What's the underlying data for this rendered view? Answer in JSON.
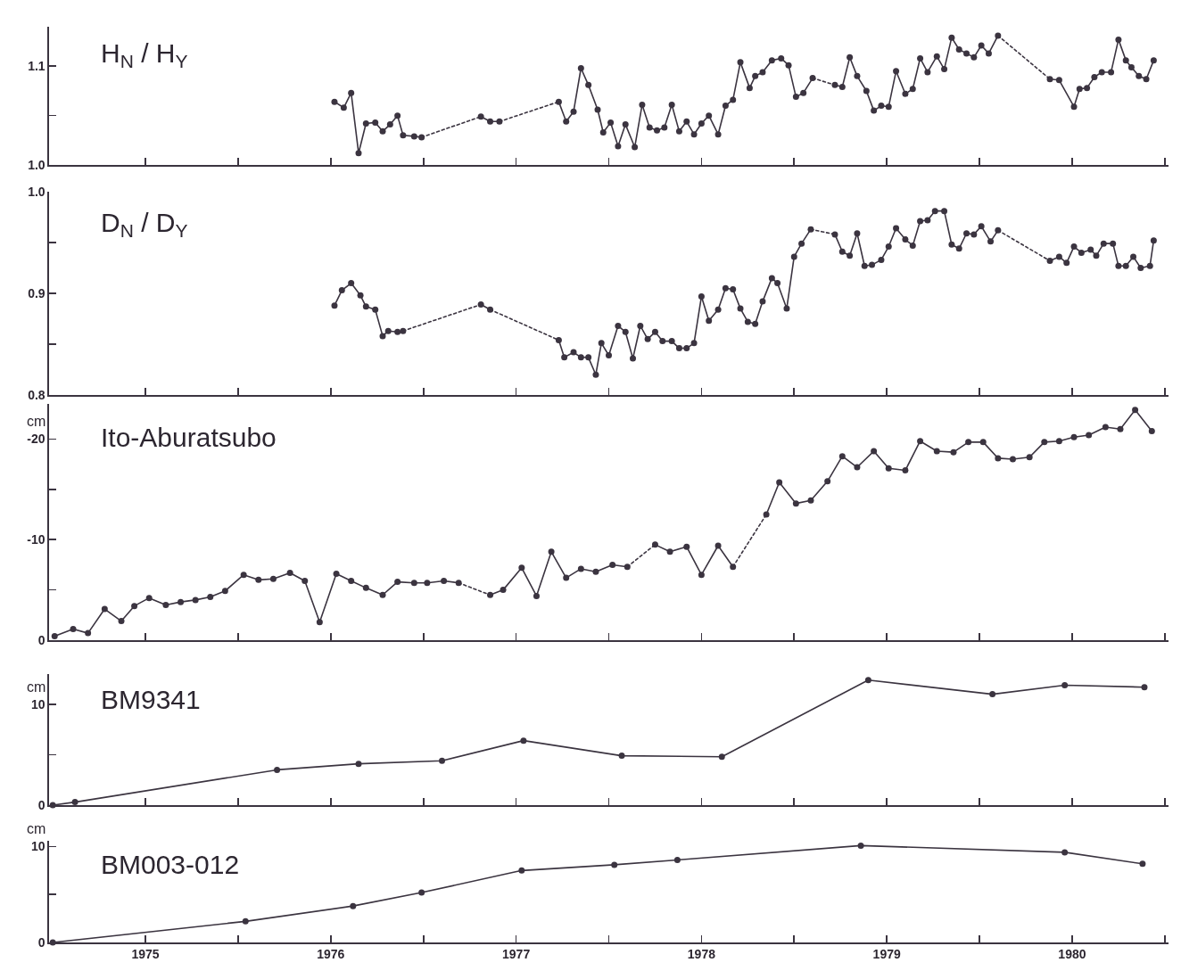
{
  "chart_data": [
    {
      "type": "line",
      "title": "H$_{N}$ / H$_{Y}$",
      "xlim": [
        1974.48,
        1980.52
      ],
      "xticks": [
        1975,
        {
          "value": 1975.5,
          "label": null
        },
        1976,
        {
          "value": 1976.5,
          "label": null
        },
        1977,
        {
          "value": 1977.5,
          "label": null
        },
        1978,
        {
          "value": 1978.5,
          "label": null
        },
        1979,
        {
          "value": 1979.5,
          "label": null
        },
        1980,
        {
          "value": 1980.5,
          "label": null
        }
      ],
      "ylim": [
        1.0,
        1.14
      ],
      "yticks": [
        {
          "value": 1.0,
          "label": "1.0"
        },
        {
          "value": 1.05,
          "label": null
        },
        1.1
      ],
      "tick_labels": "y",
      "series": [
        {
          "color": "#3b3440",
          "marker": "circle",
          "line_style": "solid",
          "x": [
            1976.02,
            1976.07,
            1976.11,
            1976.15,
            1976.19,
            1976.24,
            1976.28,
            1976.32,
            1976.36,
            1976.39,
            1976.45,
            1976.49
          ],
          "values": [
            1.064,
            1.058,
            1.073,
            1.012,
            1.042,
            1.043,
            1.034,
            1.041,
            1.05,
            1.03,
            1.029,
            1.028
          ]
        },
        {
          "color": "#3b3440",
          "marker": "circle",
          "line_style": "solid",
          "x": [
            1976.81,
            1976.86,
            1976.91
          ],
          "values": [
            1.049,
            1.044,
            1.044
          ]
        },
        {
          "color": "#3b3440",
          "marker": "circle",
          "line_style": "solid",
          "x": [
            1977.23,
            1977.27,
            1977.31,
            1977.35,
            1977.39,
            1977.44,
            1977.47,
            1977.51,
            1977.55,
            1977.59,
            1977.64,
            1977.68,
            1977.72,
            1977.76,
            1977.8,
            1977.84,
            1977.88,
            1977.92,
            1977.96,
            1978.0,
            1978.04,
            1978.09,
            1978.13,
            1978.17,
            1978.21,
            1978.26,
            1978.29,
            1978.33,
            1978.38,
            1978.43,
            1978.47,
            1978.51,
            1978.55,
            1978.6
          ],
          "values": [
            1.064,
            1.044,
            1.054,
            1.098,
            1.081,
            1.056,
            1.033,
            1.043,
            1.019,
            1.041,
            1.018,
            1.061,
            1.038,
            1.035,
            1.038,
            1.061,
            1.034,
            1.044,
            1.031,
            1.042,
            1.05,
            1.031,
            1.06,
            1.066,
            1.104,
            1.078,
            1.09,
            1.094,
            1.106,
            1.108,
            1.101,
            1.069,
            1.073,
            1.088
          ]
        },
        {
          "color": "#3b3440",
          "marker": "circle",
          "line_style": "solid",
          "x": [
            1978.72,
            1978.76,
            1978.8,
            1978.84,
            1978.89,
            1978.93,
            1978.97,
            1979.01,
            1979.05,
            1979.1,
            1979.14,
            1979.18,
            1979.22,
            1979.27,
            1979.31,
            1979.35,
            1979.39,
            1979.43,
            1979.47,
            1979.51,
            1979.55,
            1979.6
          ],
          "values": [
            1.081,
            1.079,
            1.109,
            1.09,
            1.075,
            1.055,
            1.06,
            1.059,
            1.095,
            1.072,
            1.077,
            1.108,
            1.094,
            1.11,
            1.097,
            1.129,
            1.117,
            1.113,
            1.109,
            1.121,
            1.113,
            1.131
          ]
        },
        {
          "color": "#3b3440",
          "marker": "circle",
          "line_style": "solid",
          "x": [
            1979.88,
            1979.93,
            1980.01,
            1980.04,
            1980.08,
            1980.12,
            1980.16,
            1980.21,
            1980.25,
            1980.29,
            1980.32,
            1980.36,
            1980.4,
            1980.44
          ],
          "values": [
            1.087,
            1.086,
            1.059,
            1.077,
            1.078,
            1.089,
            1.094,
            1.094,
            1.127,
            1.106,
            1.099,
            1.09,
            1.087,
            1.106
          ]
        },
        {
          "color": "#3b3440",
          "marker": "none",
          "line_style": "dotted",
          "x": [
            1976.49,
            1976.81
          ],
          "values": [
            1.028,
            1.049
          ]
        },
        {
          "color": "#3b3440",
          "marker": "none",
          "line_style": "dotted",
          "x": [
            1976.91,
            1977.23
          ],
          "values": [
            1.044,
            1.064
          ]
        },
        {
          "color": "#3b3440",
          "marker": "none",
          "line_style": "dotted",
          "x": [
            1978.6,
            1978.72
          ],
          "values": [
            1.088,
            1.081
          ]
        },
        {
          "color": "#3b3440",
          "marker": "none",
          "line_style": "dotted",
          "x": [
            1979.6,
            1979.88
          ],
          "values": [
            1.131,
            1.087
          ]
        }
      ]
    },
    {
      "type": "line",
      "title": "D$_{N}$ / D$_{Y}$",
      "xlim": [
        1974.48,
        1980.52
      ],
      "xticks": [
        1975,
        {
          "value": 1975.5,
          "label": null
        },
        1976,
        {
          "value": 1976.5,
          "label": null
        },
        1977,
        {
          "value": 1977.5,
          "label": null
        },
        1978,
        {
          "value": 1978.5,
          "label": null
        },
        1979,
        {
          "value": 1979.5,
          "label": null
        },
        1980,
        {
          "value": 1980.5,
          "label": null
        }
      ],
      "ylim": [
        0.8,
        1.0
      ],
      "yticks": [
        0.8,
        {
          "value": 0.85,
          "label": null
        },
        0.9,
        {
          "value": 0.95,
          "label": null
        },
        {
          "value": 1.0,
          "label": "1.0"
        }
      ],
      "tick_labels": "y",
      "series": [
        {
          "color": "#3b3440",
          "marker": "circle",
          "line_style": "solid",
          "x": [
            1976.02,
            1976.06,
            1976.11,
            1976.16,
            1976.19,
            1976.24,
            1976.28,
            1976.31,
            1976.36,
            1976.39
          ],
          "values": [
            0.888,
            0.903,
            0.91,
            0.898,
            0.887,
            0.884,
            0.858,
            0.863,
            0.862,
            0.863
          ]
        },
        {
          "color": "#3b3440",
          "marker": "circle",
          "line_style": "solid",
          "x": [
            1976.81,
            1976.86
          ],
          "values": [
            0.889,
            0.884
          ]
        },
        {
          "color": "#3b3440",
          "marker": "circle",
          "line_style": "solid",
          "x": [
            1977.23,
            1977.26,
            1977.31,
            1977.35,
            1977.39,
            1977.43,
            1977.46,
            1977.5,
            1977.55,
            1977.59,
            1977.63,
            1977.67,
            1977.71,
            1977.75,
            1977.79,
            1977.84,
            1977.88,
            1977.92,
            1977.96,
            1978.0,
            1978.04,
            1978.09,
            1978.13,
            1978.17,
            1978.21,
            1978.25,
            1978.29,
            1978.33,
            1978.38,
            1978.41,
            1978.46,
            1978.5,
            1978.54,
            1978.59
          ],
          "values": [
            0.854,
            0.837,
            0.842,
            0.837,
            0.837,
            0.82,
            0.851,
            0.839,
            0.868,
            0.862,
            0.836,
            0.868,
            0.855,
            0.862,
            0.853,
            0.853,
            0.846,
            0.846,
            0.851,
            0.897,
            0.873,
            0.884,
            0.905,
            0.904,
            0.885,
            0.872,
            0.87,
            0.892,
            0.915,
            0.91,
            0.885,
            0.936,
            0.949,
            0.963
          ]
        },
        {
          "color": "#3b3440",
          "marker": "circle",
          "line_style": "solid",
          "x": [
            1978.72,
            1978.76,
            1978.8,
            1978.84,
            1978.88,
            1978.92,
            1978.97,
            1979.01,
            1979.05,
            1979.1,
            1979.14,
            1979.18,
            1979.22,
            1979.26,
            1979.31,
            1979.35,
            1979.39,
            1979.43,
            1979.47,
            1979.51,
            1979.56,
            1979.6
          ],
          "values": [
            0.958,
            0.941,
            0.937,
            0.959,
            0.927,
            0.928,
            0.933,
            0.946,
            0.964,
            0.953,
            0.947,
            0.971,
            0.972,
            0.981,
            0.981,
            0.948,
            0.944,
            0.959,
            0.958,
            0.966,
            0.951,
            0.962
          ]
        },
        {
          "color": "#3b3440",
          "marker": "circle",
          "line_style": "solid",
          "x": [
            1979.88,
            1979.93,
            1979.97,
            1980.01,
            1980.05,
            1980.1,
            1980.13,
            1980.17,
            1980.22,
            1980.25,
            1980.29,
            1980.33,
            1980.37,
            1980.42,
            1980.44
          ],
          "values": [
            0.932,
            0.936,
            0.93,
            0.946,
            0.94,
            0.943,
            0.937,
            0.949,
            0.949,
            0.927,
            0.927,
            0.936,
            0.925,
            0.927,
            0.952
          ]
        },
        {
          "color": "#3b3440",
          "marker": "none",
          "line_style": "dotted",
          "x": [
            1976.39,
            1976.81
          ],
          "values": [
            0.863,
            0.889
          ]
        },
        {
          "color": "#3b3440",
          "marker": "none",
          "line_style": "dotted",
          "x": [
            1976.86,
            1977.23
          ],
          "values": [
            0.884,
            0.854
          ]
        },
        {
          "color": "#3b3440",
          "marker": "none",
          "line_style": "dotted",
          "x": [
            1978.59,
            1978.72
          ],
          "values": [
            0.963,
            0.958
          ]
        },
        {
          "color": "#3b3440",
          "marker": "none",
          "line_style": "dotted",
          "x": [
            1979.6,
            1979.88
          ],
          "values": [
            0.962,
            0.932
          ]
        }
      ]
    },
    {
      "type": "line",
      "title": "Ito-Aburatsubo",
      "ylabel": "cm",
      "xlim": [
        1974.48,
        1980.52
      ],
      "xticks": [
        1975,
        {
          "value": 1975.5,
          "label": null
        },
        1976,
        {
          "value": 1976.5,
          "label": null
        },
        1977,
        {
          "value": 1977.5,
          "label": null
        },
        1978,
        {
          "value": 1978.5,
          "label": null
        },
        1979,
        {
          "value": 1979.5,
          "label": null
        },
        1980,
        {
          "value": 1980.5,
          "label": null
        }
      ],
      "ylim": [
        0,
        -23.5
      ],
      "yticks": [
        0,
        {
          "value": -5,
          "label": null
        },
        -10,
        {
          "value": -15,
          "label": null
        },
        -20
      ],
      "tick_labels": "y",
      "series": [
        {
          "color": "#3b3440",
          "marker": "circle",
          "line_style": "solid",
          "x": [
            1974.51,
            1974.61,
            1974.69,
            1974.78,
            1974.87,
            1974.94,
            1975.02,
            1975.11,
            1975.19,
            1975.27,
            1975.35,
            1975.43,
            1975.53,
            1975.61,
            1975.69,
            1975.78,
            1975.86,
            1975.94,
            1976.03,
            1976.11,
            1976.19,
            1976.28,
            1976.36,
            1976.45,
            1976.52,
            1976.61,
            1976.69
          ],
          "values": [
            -0.4,
            -1.1,
            -0.7,
            -3.1,
            -1.9,
            -3.4,
            -4.2,
            -3.5,
            -3.8,
            -4.0,
            -4.3,
            -4.9,
            -6.5,
            -6.0,
            -6.1,
            -6.7,
            -5.9,
            -1.8,
            -6.6,
            -5.9,
            -5.2,
            -4.5,
            -5.8,
            -5.7,
            -5.7,
            -5.9,
            -5.7
          ]
        },
        {
          "color": "#3b3440",
          "marker": "circle",
          "line_style": "solid",
          "x": [
            1976.86,
            1976.93,
            1977.03,
            1977.11,
            1977.19,
            1977.27,
            1977.35,
            1977.43,
            1977.52,
            1977.6
          ],
          "values": [
            -4.5,
            -5.0,
            -7.2,
            -4.4,
            -8.8,
            -6.2,
            -7.1,
            -6.8,
            -7.5,
            -7.3
          ]
        },
        {
          "color": "#3b3440",
          "marker": "circle",
          "line_style": "solid",
          "x": [
            1977.75,
            1977.83,
            1977.92,
            1978.0,
            1978.09,
            1978.17
          ],
          "values": [
            -9.5,
            -8.8,
            -9.3,
            -6.5,
            -9.4,
            -7.3
          ]
        },
        {
          "color": "#3b3440",
          "marker": "circle",
          "line_style": "solid",
          "x": [
            1978.35,
            1978.42,
            1978.51,
            1978.59,
            1978.68,
            1978.76,
            1978.84,
            1978.93,
            1979.01,
            1979.1,
            1979.18,
            1979.27,
            1979.36,
            1979.44,
            1979.52,
            1979.6,
            1979.68,
            1979.77,
            1979.85,
            1979.93,
            1980.01,
            1980.09,
            1980.18,
            1980.26,
            1980.34,
            1980.43
          ],
          "values": [
            -12.5,
            -15.7,
            -13.6,
            -13.9,
            -15.8,
            -18.3,
            -17.2,
            -18.8,
            -17.1,
            -16.9,
            -19.8,
            -18.8,
            -18.7,
            -19.7,
            -19.7,
            -18.1,
            -18.0,
            -18.2,
            -19.7,
            -19.8,
            -20.2,
            -20.4,
            -21.2,
            -21.0,
            -22.9,
            -20.8
          ]
        },
        {
          "color": "#3b3440",
          "marker": "none",
          "line_style": "dotted",
          "x": [
            1976.69,
            1976.86
          ],
          "values": [
            -5.7,
            -4.5
          ]
        },
        {
          "color": "#3b3440",
          "marker": "none",
          "line_style": "dotted",
          "x": [
            1977.6,
            1977.75
          ],
          "values": [
            -7.3,
            -9.5
          ]
        },
        {
          "color": "#3b3440",
          "marker": "none",
          "line_style": "dotted",
          "x": [
            1978.17,
            1978.35
          ],
          "values": [
            -7.3,
            -12.5
          ]
        }
      ]
    },
    {
      "type": "line",
      "title": "BM9341",
      "ylabel": "cm",
      "xlim": [
        1974.48,
        1980.52
      ],
      "xticks": [
        1975,
        {
          "value": 1975.5,
          "label": null
        },
        1976,
        {
          "value": 1976.5,
          "label": null
        },
        1977,
        {
          "value": 1977.5,
          "label": null
        },
        1978,
        {
          "value": 1978.5,
          "label": null
        },
        1979,
        {
          "value": 1979.5,
          "label": null
        },
        1980,
        {
          "value": 1980.5,
          "label": null
        }
      ],
      "ylim": [
        0,
        13
      ],
      "yticks": [
        0,
        {
          "value": 5,
          "label": null
        },
        10
      ],
      "tick_labels": "y",
      "series": [
        {
          "color": "#3b3440",
          "marker": "circle",
          "line_style": "solid",
          "x": [
            1974.5,
            1974.62,
            1975.71,
            1976.15,
            1976.6,
            1977.04,
            1977.57,
            1978.11,
            1978.9,
            1979.57,
            1979.96,
            1980.39
          ],
          "values": [
            0,
            0.3,
            3.5,
            4.1,
            4.4,
            6.4,
            4.9,
            4.8,
            12.4,
            11.0,
            11.9,
            11.7
          ]
        }
      ]
    },
    {
      "type": "line",
      "title": "BM003-012",
      "ylabel": "cm",
      "xlim": [
        1974.48,
        1980.52
      ],
      "xticks": [
        1975,
        {
          "value": 1975.5,
          "label": null
        },
        1976,
        {
          "value": 1976.5,
          "label": null
        },
        1977,
        {
          "value": 1977.5,
          "label": null
        },
        1978,
        {
          "value": 1978.5,
          "label": null
        },
        1979,
        {
          "value": 1979.5,
          "label": null
        },
        1980,
        {
          "value": 1980.5,
          "label": null
        }
      ],
      "ylim": [
        0,
        10.6
      ],
      "yticks": [
        0,
        {
          "value": 5,
          "label": null
        },
        10
      ],
      "series": [
        {
          "color": "#3b3440",
          "marker": "circle",
          "line_style": "solid",
          "x": [
            1974.5,
            1975.54,
            1976.12,
            1976.49,
            1977.03,
            1977.53,
            1977.87,
            1978.86,
            1979.96,
            1980.38
          ],
          "values": [
            0,
            2.2,
            3.8,
            5.2,
            7.5,
            8.1,
            8.6,
            10.1,
            9.4,
            8.2
          ]
        }
      ]
    }
  ]
}
